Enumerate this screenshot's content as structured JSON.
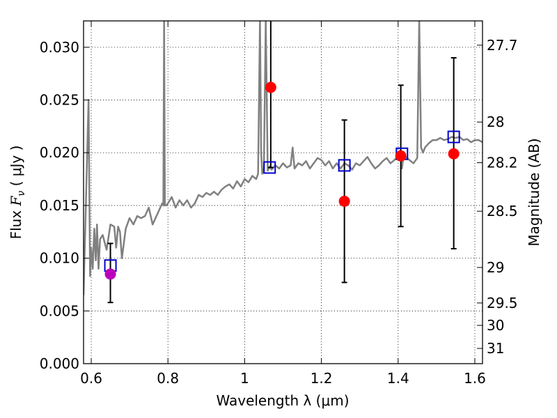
{
  "chart_data": {
    "type": "scatter",
    "title": "",
    "xlabel": "Wavelength  λ (μm)",
    "ylabel": "Flux  F_ν  ( μJy )",
    "ylabel_parts": {
      "prefix": "Flux  ",
      "symbol": "F",
      "subscript": "ν",
      "suffix": "  ( μJy )"
    },
    "y2label": "Magnitude (AB)",
    "xlim": [
      0.58,
      1.62
    ],
    "ylim": [
      0.0,
      0.0325
    ],
    "grid": true,
    "x_ticks": [
      0.6,
      0.8,
      1.0,
      1.2,
      1.4,
      1.6
    ],
    "x_tick_labels": [
      "0.6",
      "0.8",
      "1",
      "1.2",
      "1.4",
      "1.6"
    ],
    "y_ticks": [
      0.0,
      0.005,
      0.01,
      0.015,
      0.02,
      0.025,
      0.03
    ],
    "y_tick_labels": [
      "0.000",
      "0.005",
      "0.010",
      "0.015",
      "0.020",
      "0.025",
      "0.030"
    ],
    "y2_ticks": [
      27.7,
      28,
      28.2,
      28.5,
      29,
      29.5,
      30,
      31
    ],
    "y2_tick_labels": [
      "27.7",
      "28",
      "28.2",
      "28.5",
      "29",
      "29.5",
      "30",
      "31"
    ],
    "series": [
      {
        "name": "model spectrum",
        "kind": "line",
        "color": "#808080",
        "x": [
          0.58,
          0.593,
          0.597,
          0.6,
          0.604,
          0.608,
          0.612,
          0.615,
          0.619,
          0.623,
          0.63,
          0.64,
          0.65,
          0.66,
          0.665,
          0.67,
          0.675,
          0.68,
          0.69,
          0.7,
          0.71,
          0.72,
          0.73,
          0.74,
          0.75,
          0.76,
          0.77,
          0.78,
          0.785,
          0.788,
          0.79,
          0.792,
          0.795,
          0.8,
          0.81,
          0.82,
          0.83,
          0.84,
          0.85,
          0.86,
          0.87,
          0.88,
          0.89,
          0.9,
          0.91,
          0.92,
          0.93,
          0.94,
          0.95,
          0.96,
          0.97,
          0.98,
          0.99,
          1.0,
          1.01,
          1.02,
          1.03,
          1.035,
          1.04,
          1.043,
          1.046,
          1.05,
          1.055,
          1.06,
          1.065,
          1.07,
          1.08,
          1.09,
          1.1,
          1.11,
          1.12,
          1.125,
          1.13,
          1.14,
          1.15,
          1.16,
          1.17,
          1.18,
          1.19,
          1.2,
          1.21,
          1.22,
          1.23,
          1.24,
          1.25,
          1.26,
          1.27,
          1.28,
          1.29,
          1.3,
          1.31,
          1.32,
          1.33,
          1.34,
          1.35,
          1.36,
          1.37,
          1.38,
          1.39,
          1.4,
          1.405,
          1.41,
          1.415,
          1.42,
          1.43,
          1.44,
          1.45,
          1.455,
          1.46,
          1.465,
          1.47,
          1.48,
          1.49,
          1.5,
          1.51,
          1.52,
          1.53,
          1.54,
          1.55,
          1.56,
          1.57,
          1.58,
          1.59,
          1.6,
          1.61,
          1.62
        ],
        "y": [
          0.0065,
          0.025,
          0.0083,
          0.011,
          0.009,
          0.0128,
          0.0098,
          0.0132,
          0.009,
          0.0118,
          0.0122,
          0.0108,
          0.0132,
          0.013,
          0.011,
          0.013,
          0.0125,
          0.01,
          0.0128,
          0.0138,
          0.0132,
          0.014,
          0.0138,
          0.014,
          0.0148,
          0.0132,
          0.014,
          0.0148,
          0.0152,
          0.015,
          0.0326,
          0.015,
          0.015,
          0.0152,
          0.0158,
          0.0148,
          0.0155,
          0.015,
          0.0155,
          0.0148,
          0.0152,
          0.016,
          0.0158,
          0.0162,
          0.016,
          0.0163,
          0.016,
          0.0165,
          0.0168,
          0.017,
          0.0166,
          0.0173,
          0.0168,
          0.0175,
          0.0172,
          0.0178,
          0.0175,
          0.018,
          0.0326,
          0.02,
          0.018,
          0.0185,
          0.0326,
          0.0183,
          0.0187,
          0.0184,
          0.0188,
          0.0185,
          0.019,
          0.0186,
          0.0188,
          0.0205,
          0.0185,
          0.019,
          0.0188,
          0.0192,
          0.0185,
          0.019,
          0.0195,
          0.0193,
          0.0188,
          0.0192,
          0.0185,
          0.019,
          0.0185,
          0.019,
          0.0188,
          0.0184,
          0.019,
          0.0188,
          0.0192,
          0.0196,
          0.019,
          0.0185,
          0.0188,
          0.0192,
          0.0195,
          0.019,
          0.0193,
          0.0197,
          0.0202,
          0.0185,
          0.02,
          0.0196,
          0.0193,
          0.019,
          0.0195,
          0.0326,
          0.0205,
          0.02,
          0.0205,
          0.0209,
          0.0212,
          0.0212,
          0.0214,
          0.0212,
          0.0213,
          0.0215,
          0.0214,
          0.0215,
          0.0212,
          0.0213,
          0.021,
          0.0212,
          0.0212,
          0.021
        ]
      },
      {
        "name": "model photometry",
        "kind": "square",
        "color": "#0000cc",
        "x": [
          0.65,
          1.065,
          1.26,
          1.41,
          1.545
        ],
        "y": [
          0.0093,
          0.0186,
          0.0188,
          0.0199,
          0.0215
        ]
      },
      {
        "name": "observed photometry",
        "kind": "point",
        "color": "#ff0000",
        "x": [
          0.65,
          1.068,
          1.26,
          1.407,
          1.545
        ],
        "y": [
          0.0085,
          0.0262,
          0.0154,
          0.0197,
          0.0199
        ],
        "point_colors": [
          "#bb00bb",
          "#ff0000",
          "#ff0000",
          "#ff0000",
          "#ff0000"
        ],
        "yerr_low": [
          0.0058,
          0.0186,
          0.0077,
          0.013,
          0.0109
        ],
        "yerr_high": [
          0.0114,
          0.033,
          0.0231,
          0.0264,
          0.029
        ]
      }
    ]
  }
}
